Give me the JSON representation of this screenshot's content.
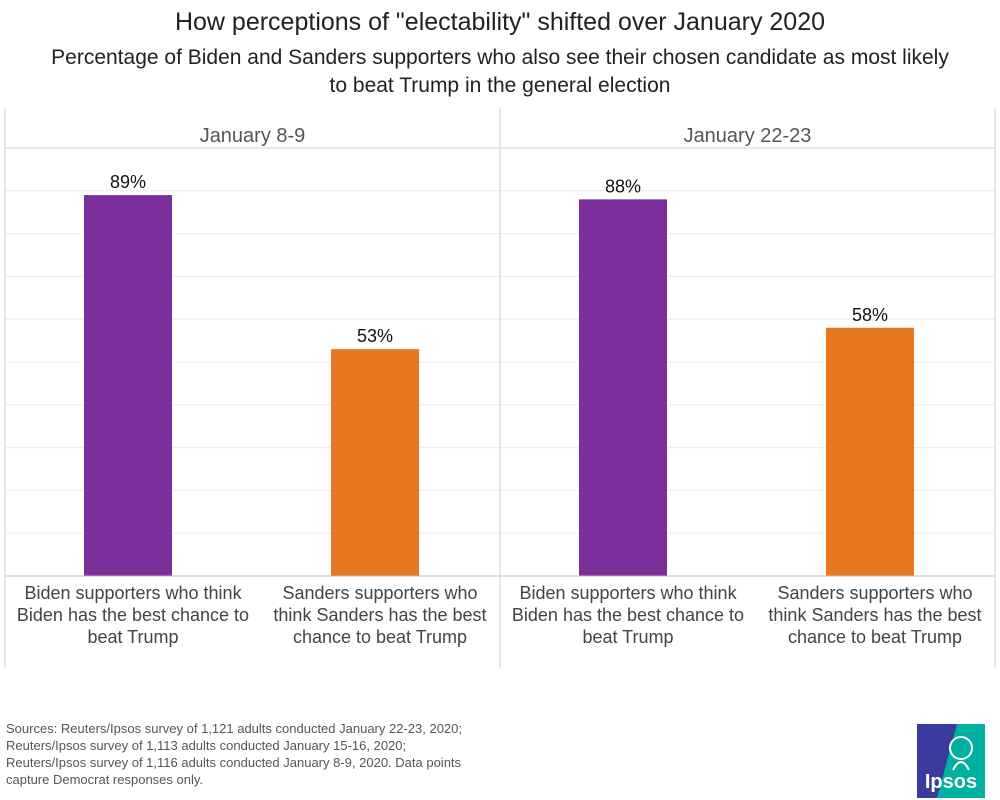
{
  "chart_data": {
    "type": "bar",
    "title": "How perceptions of \"electability\" shifted over January 2020",
    "subtitle": "Percentage of Biden and Sanders supporters who also see their chosen candidate as most likely to beat Trump in the general election",
    "panels": [
      {
        "label": "January 8-9",
        "categories": [
          {
            "lines": [
              "Biden supporters who think",
              "Biden has the best chance to",
              "beat Trump"
            ],
            "value": 89,
            "value_label": "89%",
            "color": "#7b2f9a"
          },
          {
            "lines": [
              "Sanders supporters who",
              "think Sanders has the best",
              "chance to beat Trump"
            ],
            "value": 53,
            "value_label": "53%",
            "color": "#e87722"
          }
        ]
      },
      {
        "label": "January 22-23",
        "categories": [
          {
            "lines": [
              "Biden supporters who think",
              "Biden has the best chance to",
              "beat Trump"
            ],
            "value": 88,
            "value_label": "88%",
            "color": "#7b2f9a"
          },
          {
            "lines": [
              "Sanders supporters who",
              "think Sanders has the best",
              "chance to beat Trump"
            ],
            "value": 58,
            "value_label": "58%",
            "color": "#e87722"
          }
        ]
      }
    ],
    "ylim": [
      0,
      100
    ],
    "gridlines": true,
    "xlabel": "",
    "ylabel": ""
  },
  "footer": {
    "sources": [
      "Sources: Reuters/Ipsos survey of 1,121 adults conducted January 22-23, 2020;",
      "Reuters/Ipsos survey of 1,113 adults conducted January 15-16, 2020;",
      "Reuters/Ipsos survey of 1,116 adults conducted January 8-9, 2020. Data points",
      "capture Democrat responses only."
    ],
    "logo_text": "Ipsos",
    "logo_colors": {
      "blue": "#3b3b9e",
      "teal": "#00b0a0"
    }
  }
}
